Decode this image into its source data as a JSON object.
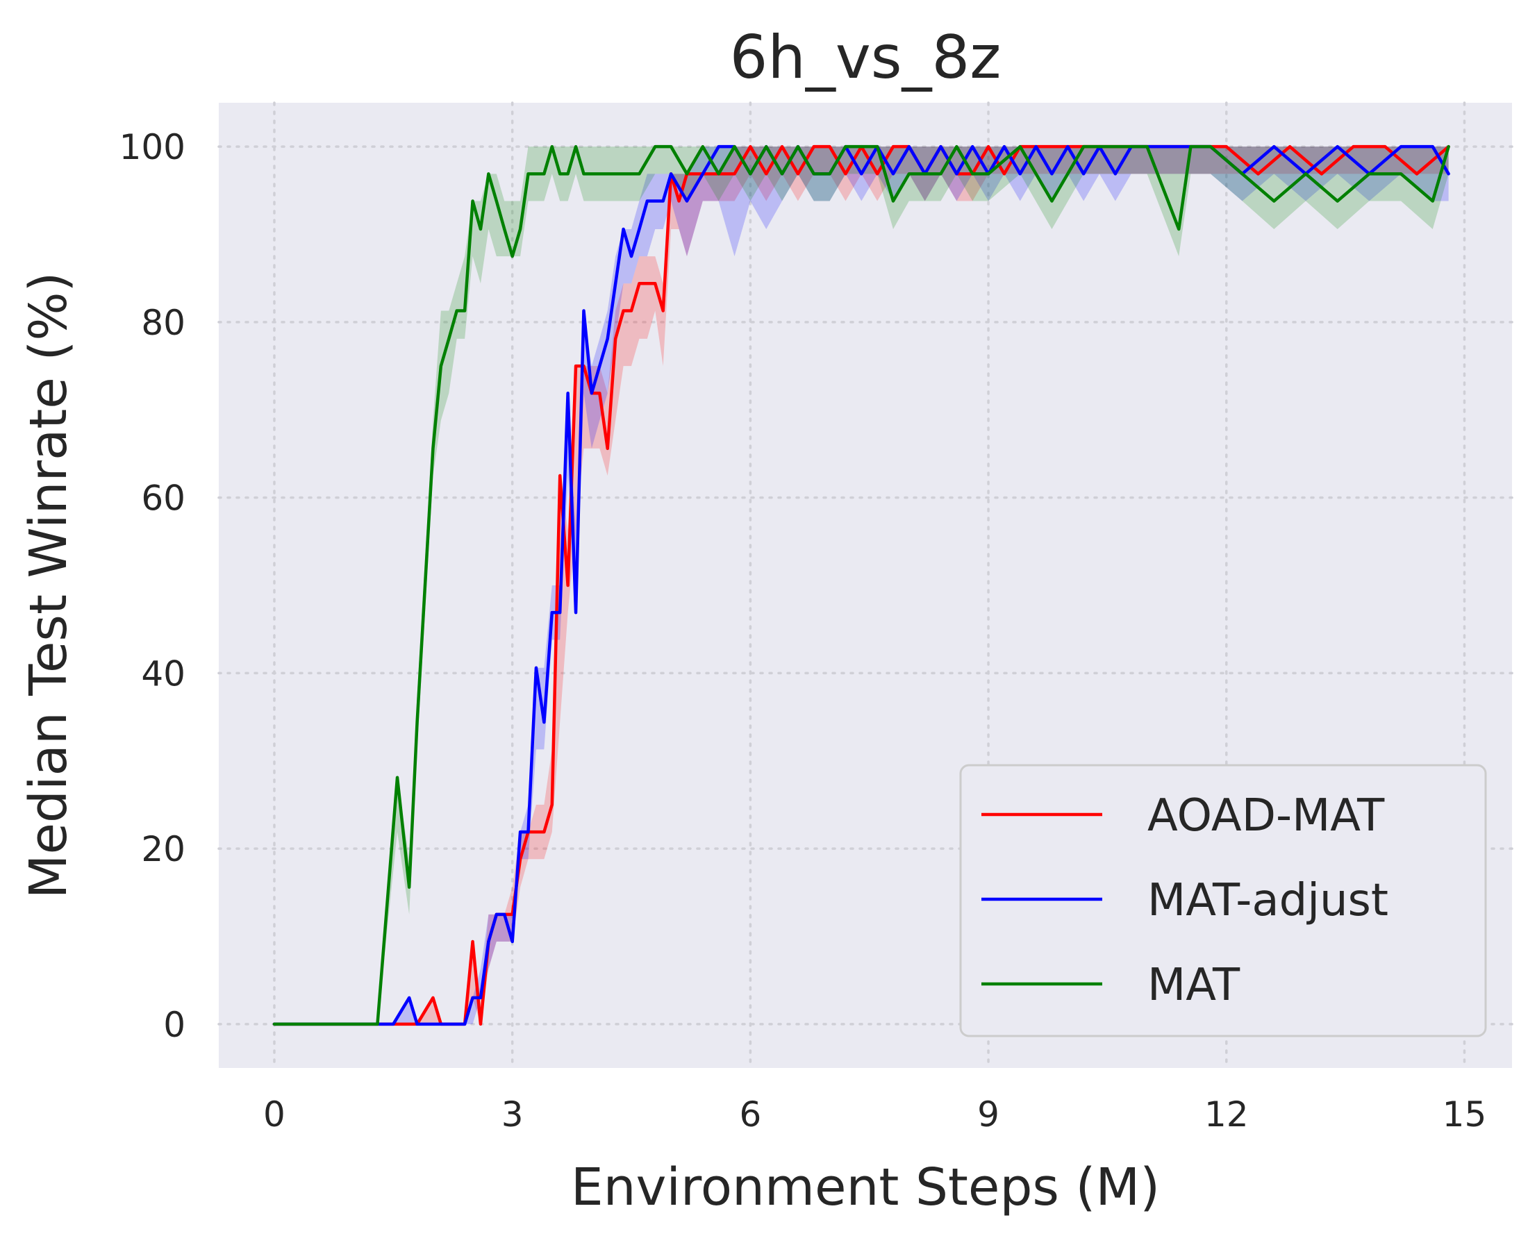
{
  "chart_data": {
    "type": "line",
    "title": "6h_vs_8z",
    "xlabel": "Environment Steps (M)",
    "ylabel": "Median Test Winrate (%)",
    "xlim": [
      -0.7,
      15.6
    ],
    "ylim": [
      -5,
      105
    ],
    "xticks": [
      0,
      3,
      6,
      9,
      12,
      15
    ],
    "yticks": [
      0,
      20,
      40,
      60,
      80,
      100
    ],
    "grid": true,
    "legend_position": "lower right",
    "colors": {
      "AOAD-MAT": "#ff0000",
      "MAT-adjust": "#0000ff",
      "MAT": "#008000",
      "plot_background": "#eaeaf2",
      "grid": "#cfcfd6"
    },
    "series": [
      {
        "name": "AOAD-MAT",
        "x": [
          0,
          1.2,
          1.4,
          1.6,
          1.8,
          2.0,
          2.1,
          2.2,
          2.3,
          2.4,
          2.5,
          2.6,
          2.7,
          2.8,
          2.9,
          3.0,
          3.1,
          3.2,
          3.3,
          3.4,
          3.5,
          3.6,
          3.7,
          3.8,
          3.9,
          4.0,
          4.1,
          4.2,
          4.3,
          4.4,
          4.5,
          4.6,
          4.7,
          4.8,
          4.9,
          5.0,
          5.1,
          5.2,
          5.4,
          5.6,
          5.8,
          6.0,
          6.2,
          6.4,
          6.6,
          6.8,
          7.0,
          7.2,
          7.4,
          7.6,
          7.8,
          8.0,
          8.2,
          8.4,
          8.6,
          8.8,
          9.0,
          9.2,
          9.4,
          9.6,
          9.8,
          10.0,
          10.4,
          10.8,
          11.2,
          11.6,
          12.0,
          12.4,
          12.8,
          13.2,
          13.6,
          14.0,
          14.4,
          14.8
        ],
        "y": [
          0,
          0,
          0,
          0,
          0,
          3,
          0,
          0,
          0,
          0,
          9.4,
          0,
          9.4,
          12.5,
          12.5,
          12.5,
          18.8,
          21.9,
          21.9,
          21.9,
          25,
          62.5,
          50,
          75,
          75,
          71.9,
          71.9,
          65.6,
          78.1,
          81.3,
          81.3,
          84.4,
          84.4,
          84.4,
          81.3,
          96.9,
          93.8,
          96.9,
          96.9,
          96.9,
          96.9,
          100,
          96.9,
          100,
          96.9,
          100,
          100,
          96.9,
          100,
          96.9,
          100,
          100,
          96.9,
          100,
          96.9,
          96.9,
          100,
          96.9,
          100,
          100,
          100,
          100,
          100,
          100,
          100,
          100,
          100,
          96.9,
          100,
          96.9,
          100,
          100,
          96.9,
          100
        ],
        "upper": [
          0,
          0,
          0,
          0,
          0,
          3,
          0,
          0,
          0,
          0,
          9.4,
          3,
          12.5,
          12.5,
          12.5,
          15.6,
          21.9,
          21.9,
          25,
          25,
          31.3,
          62.5,
          56.3,
          75,
          75,
          75,
          75,
          71.9,
          81.3,
          84.4,
          84.4,
          87.5,
          87.5,
          87.5,
          84.4,
          96.9,
          96.9,
          96.9,
          96.9,
          96.9,
          100,
          100,
          100,
          100,
          100,
          100,
          100,
          100,
          100,
          100,
          100,
          100,
          100,
          100,
          100,
          100,
          100,
          100,
          100,
          100,
          100,
          100,
          100,
          100,
          100,
          100,
          100,
          100,
          100,
          100,
          100,
          100,
          100,
          100
        ],
        "lower": [
          0,
          0,
          0,
          0,
          0,
          0,
          0,
          0,
          0,
          0,
          3,
          0,
          6.3,
          9.4,
          9.4,
          9.4,
          15.6,
          18.8,
          18.8,
          18.8,
          21.9,
          34.4,
          46.9,
          56.3,
          65.6,
          65.6,
          65.6,
          62.5,
          68.8,
          75,
          75,
          78.1,
          78.1,
          81.3,
          75,
          90.6,
          90.6,
          87.5,
          93.8,
          93.8,
          93.8,
          96.9,
          93.8,
          96.9,
          93.8,
          96.9,
          96.9,
          93.8,
          96.9,
          93.8,
          96.9,
          96.9,
          93.8,
          96.9,
          93.8,
          93.8,
          96.9,
          96.9,
          96.9,
          96.9,
          96.9,
          96.9,
          96.9,
          96.9,
          96.9,
          96.9,
          96.9,
          96.9,
          96.9,
          96.9,
          96.9,
          96.9,
          96.9,
          96.9
        ]
      },
      {
        "name": "MAT-adjust",
        "x": [
          0,
          1.3,
          1.5,
          1.7,
          1.8,
          2.0,
          2.1,
          2.2,
          2.3,
          2.4,
          2.5,
          2.6,
          2.7,
          2.8,
          2.9,
          3.0,
          3.1,
          3.2,
          3.3,
          3.4,
          3.5,
          3.6,
          3.7,
          3.8,
          3.9,
          4.0,
          4.1,
          4.2,
          4.3,
          4.4,
          4.5,
          4.6,
          4.7,
          4.8,
          4.9,
          5.0,
          5.2,
          5.4,
          5.6,
          5.8,
          6.0,
          6.2,
          6.4,
          6.6,
          6.8,
          7.0,
          7.2,
          7.4,
          7.6,
          7.8,
          8.0,
          8.2,
          8.4,
          8.6,
          8.8,
          9.0,
          9.2,
          9.4,
          9.6,
          9.8,
          10.0,
          10.2,
          10.4,
          10.6,
          10.8,
          11.0,
          11.4,
          11.8,
          12.2,
          12.6,
          13.0,
          13.4,
          13.8,
          14.2,
          14.6,
          14.8
        ],
        "y": [
          0,
          0,
          0,
          3,
          0,
          0,
          0,
          0,
          0,
          0,
          3,
          3,
          9.4,
          12.5,
          12.5,
          9.4,
          21.9,
          21.9,
          40.6,
          34.4,
          46.9,
          46.9,
          71.9,
          46.9,
          81.3,
          71.9,
          75,
          78.1,
          84.4,
          90.6,
          87.5,
          90.6,
          93.8,
          93.8,
          93.8,
          96.9,
          93.8,
          96.9,
          100,
          100,
          96.9,
          100,
          96.9,
          100,
          96.9,
          96.9,
          100,
          96.9,
          100,
          96.9,
          100,
          96.9,
          100,
          96.9,
          100,
          96.9,
          100,
          96.9,
          100,
          96.9,
          100,
          96.9,
          100,
          96.9,
          100,
          100,
          100,
          100,
          96.9,
          100,
          96.9,
          100,
          96.9,
          100,
          100,
          96.9
        ],
        "upper": [
          0,
          0,
          0,
          3,
          0,
          0,
          0,
          0,
          0,
          0,
          3,
          6.3,
          12.5,
          12.5,
          12.5,
          12.5,
          21.9,
          25,
          40.6,
          40.6,
          50,
          50,
          71.9,
          56.3,
          81.3,
          75,
          78.1,
          81.3,
          87.5,
          90.6,
          90.6,
          93.8,
          96.9,
          96.9,
          96.9,
          96.9,
          96.9,
          100,
          100,
          100,
          100,
          100,
          100,
          100,
          100,
          100,
          100,
          100,
          100,
          100,
          100,
          100,
          100,
          100,
          100,
          100,
          100,
          100,
          100,
          100,
          100,
          100,
          100,
          100,
          100,
          100,
          100,
          100,
          100,
          100,
          100,
          100,
          100,
          100,
          100,
          100
        ],
        "lower": [
          0,
          0,
          0,
          0,
          0,
          0,
          0,
          0,
          0,
          0,
          0,
          3,
          6.3,
          9.4,
          9.4,
          9.4,
          18.8,
          18.8,
          31.3,
          31.3,
          43.8,
          43.8,
          62.5,
          46.9,
          71.9,
          65.6,
          68.8,
          71.9,
          78.1,
          84.4,
          84.4,
          87.5,
          87.5,
          90.6,
          90.6,
          93.8,
          87.5,
          93.8,
          93.8,
          87.5,
          93.8,
          90.6,
          93.8,
          96.9,
          93.8,
          93.8,
          96.9,
          93.8,
          96.9,
          93.8,
          96.9,
          93.8,
          96.9,
          93.8,
          96.9,
          93.8,
          96.9,
          93.8,
          96.9,
          93.8,
          96.9,
          93.8,
          96.9,
          93.8,
          96.9,
          96.9,
          96.9,
          96.9,
          93.8,
          96.9,
          93.8,
          96.9,
          93.8,
          96.9,
          93.8,
          93.8
        ]
      },
      {
        "name": "MAT",
        "x": [
          0,
          1.3,
          1.55,
          1.7,
          1.8,
          2.0,
          2.1,
          2.2,
          2.3,
          2.4,
          2.5,
          2.6,
          2.7,
          2.8,
          2.9,
          3.0,
          3.1,
          3.2,
          3.3,
          3.4,
          3.5,
          3.6,
          3.7,
          3.8,
          3.9,
          4.0,
          4.2,
          4.4,
          4.6,
          4.8,
          5.0,
          5.2,
          5.4,
          5.6,
          5.8,
          6.0,
          6.2,
          6.4,
          6.6,
          6.8,
          7.0,
          7.2,
          7.4,
          7.6,
          7.8,
          8.0,
          8.2,
          8.4,
          8.6,
          8.8,
          9.0,
          9.4,
          9.8,
          10.2,
          10.6,
          11.0,
          11.4,
          11.55,
          11.8,
          12.2,
          12.6,
          13.0,
          13.4,
          13.8,
          14.2,
          14.6,
          14.8
        ],
        "y": [
          0,
          0,
          28.1,
          15.6,
          34.4,
          65.6,
          75,
          78.1,
          81.3,
          81.3,
          93.8,
          90.6,
          96.9,
          93.8,
          90.6,
          87.5,
          90.6,
          96.9,
          96.9,
          96.9,
          100,
          96.9,
          96.9,
          100,
          96.9,
          96.9,
          96.9,
          96.9,
          96.9,
          100,
          100,
          96.9,
          100,
          96.9,
          100,
          96.9,
          100,
          96.9,
          100,
          96.9,
          96.9,
          100,
          100,
          100,
          93.8,
          96.9,
          96.9,
          96.9,
          100,
          96.9,
          96.9,
          100,
          93.8,
          100,
          100,
          100,
          90.6,
          100,
          100,
          96.9,
          93.8,
          96.9,
          93.8,
          96.9,
          96.9,
          93.8,
          100
        ],
        "upper": [
          0,
          0,
          28.1,
          18.8,
          37.5,
          68.8,
          81.3,
          81.3,
          84.4,
          87.5,
          93.8,
          93.8,
          96.9,
          96.9,
          93.8,
          93.8,
          93.8,
          100,
          100,
          100,
          100,
          100,
          100,
          100,
          100,
          100,
          100,
          100,
          100,
          100,
          100,
          100,
          100,
          100,
          100,
          100,
          100,
          100,
          100,
          100,
          100,
          100,
          100,
          100,
          100,
          100,
          100,
          100,
          100,
          100,
          100,
          100,
          100,
          100,
          100,
          100,
          100,
          100,
          100,
          100,
          100,
          100,
          100,
          100,
          100,
          100,
          100
        ],
        "lower": [
          0,
          0,
          21.9,
          12.5,
          31.3,
          62.5,
          68.8,
          71.9,
          78.1,
          78.1,
          87.5,
          84.4,
          90.6,
          87.5,
          87.5,
          87.5,
          87.5,
          93.8,
          93.8,
          93.8,
          96.9,
          93.8,
          93.8,
          96.9,
          93.8,
          93.8,
          93.8,
          93.8,
          93.8,
          96.9,
          96.9,
          93.8,
          96.9,
          93.8,
          96.9,
          93.8,
          96.9,
          93.8,
          96.9,
          93.8,
          93.8,
          96.9,
          96.9,
          96.9,
          90.6,
          93.8,
          93.8,
          93.8,
          96.9,
          93.8,
          93.8,
          96.9,
          90.6,
          96.9,
          96.9,
          96.9,
          87.5,
          96.9,
          96.9,
          93.8,
          90.6,
          93.8,
          90.6,
          93.8,
          93.8,
          90.6,
          96.9
        ]
      }
    ]
  }
}
